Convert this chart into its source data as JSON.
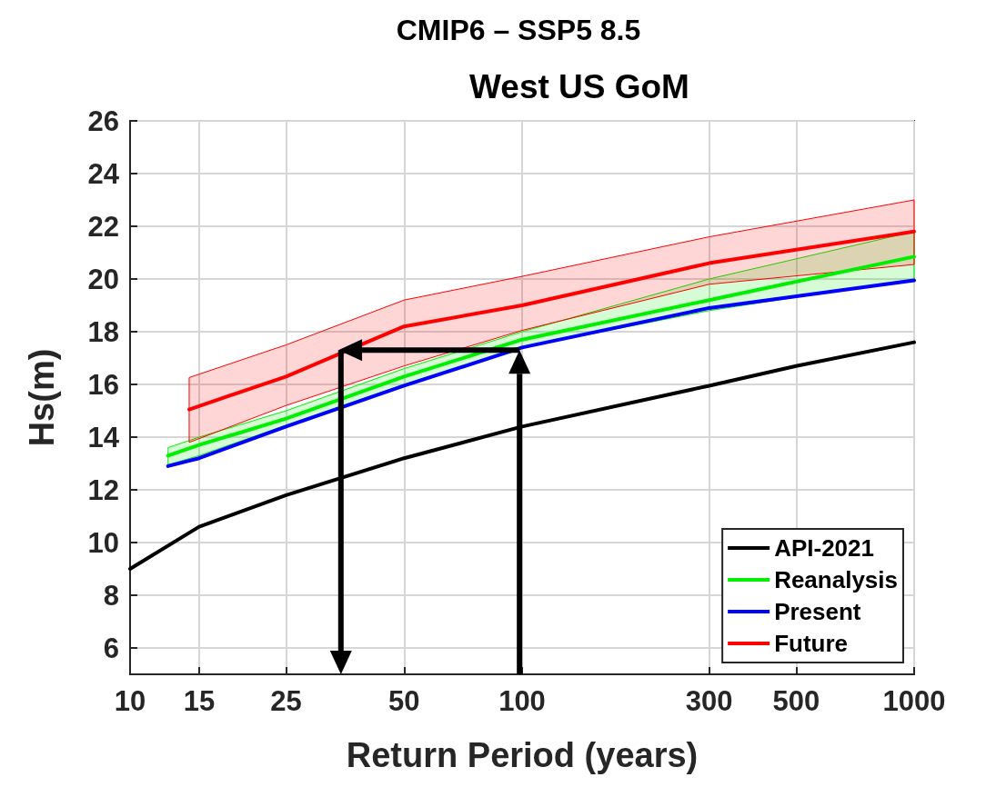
{
  "chart_data": {
    "type": "line",
    "title": "CMIP6 – SSP5 8.5",
    "subtitle": "West US GoM",
    "xlabel": "Return Period (years)",
    "ylabel": "Hs(m)",
    "log": "x",
    "xlim": [
      10,
      1000
    ],
    "xticks": [
      10,
      15,
      25,
      50,
      100,
      300,
      500,
      1000
    ],
    "ylim": [
      5,
      26
    ],
    "yticks": [
      6,
      8,
      10,
      12,
      14,
      16,
      18,
      20,
      22,
      24,
      26
    ],
    "grid": true,
    "legend": "bottom right",
    "marker": "none",
    "line_style": "solid",
    "series": [
      {
        "name": "API-2021",
        "color": "#000000",
        "x": [
          10,
          15,
          25,
          50,
          100,
          300,
          500,
          1000
        ],
        "values": [
          9.0,
          10.6,
          11.8,
          13.2,
          14.4,
          15.95,
          16.7,
          17.6
        ]
      },
      {
        "name": "Reanalysis",
        "color": "#00ee00",
        "x": [
          12.5,
          15,
          25,
          50,
          100,
          300,
          1000
        ],
        "values": [
          13.3,
          13.7,
          14.7,
          16.3,
          17.7,
          19.2,
          20.85
        ],
        "lower": [
          12.95,
          13.3,
          14.45,
          16.0,
          17.4,
          18.8,
          20.0
        ],
        "upper": [
          13.6,
          14.0,
          15.0,
          16.6,
          18.0,
          20.0,
          21.8
        ]
      },
      {
        "name": "Present",
        "color": "#0000ff",
        "x": [
          12.5,
          15,
          25,
          50,
          100,
          300,
          1000
        ],
        "values": [
          12.9,
          13.2,
          14.4,
          15.95,
          17.4,
          18.9,
          19.95
        ]
      },
      {
        "name": "Future",
        "color": "#ff0000",
        "x": [
          14.15,
          25,
          50,
          100,
          300,
          1000
        ],
        "values": [
          15.05,
          16.3,
          18.2,
          19.0,
          20.6,
          21.8
        ],
        "lower": [
          13.8,
          15.2,
          16.7,
          18.05,
          19.8,
          20.55
        ],
        "upper": [
          16.26,
          17.5,
          19.2,
          20.1,
          21.6,
          23.0
        ]
      }
    ]
  }
}
